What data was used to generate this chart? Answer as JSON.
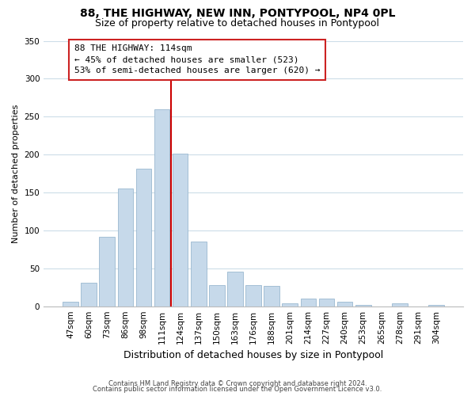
{
  "title": "88, THE HIGHWAY, NEW INN, PONTYPOOL, NP4 0PL",
  "subtitle": "Size of property relative to detached houses in Pontypool",
  "xlabel": "Distribution of detached houses by size in Pontypool",
  "ylabel": "Number of detached properties",
  "bar_labels": [
    "47sqm",
    "60sqm",
    "73sqm",
    "86sqm",
    "98sqm",
    "111sqm",
    "124sqm",
    "137sqm",
    "150sqm",
    "163sqm",
    "176sqm",
    "188sqm",
    "201sqm",
    "214sqm",
    "227sqm",
    "240sqm",
    "253sqm",
    "265sqm",
    "278sqm",
    "291sqm",
    "304sqm"
  ],
  "bar_values": [
    6,
    31,
    92,
    155,
    181,
    260,
    201,
    85,
    28,
    46,
    28,
    27,
    4,
    10,
    10,
    6,
    2,
    0,
    4,
    0,
    2
  ],
  "bar_color": "#c6d9ea",
  "bar_edge_color": "#9ab8d0",
  "vline_color": "#cc0000",
  "vline_x": 5.5,
  "annotation_title": "88 THE HIGHWAY: 114sqm",
  "annotation_line1": "← 45% of detached houses are smaller (523)",
  "annotation_line2": "53% of semi-detached houses are larger (620) →",
  "annotation_box_facecolor": "#ffffff",
  "annotation_box_edgecolor": "#cc2222",
  "ylim": [
    0,
    350
  ],
  "yticks": [
    0,
    50,
    100,
    150,
    200,
    250,
    300,
    350
  ],
  "grid_color": "#ccdde8",
  "title_fontsize": 10,
  "subtitle_fontsize": 9,
  "xlabel_fontsize": 9,
  "ylabel_fontsize": 8,
  "tick_fontsize": 7.5,
  "footer1": "Contains HM Land Registry data © Crown copyright and database right 2024.",
  "footer2": "Contains public sector information licensed under the Open Government Licence v3.0."
}
